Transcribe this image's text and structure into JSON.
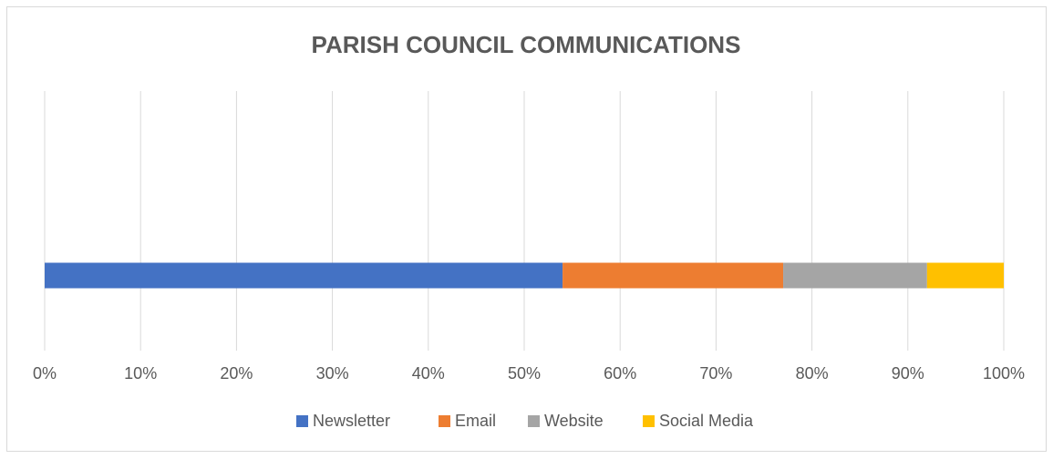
{
  "chart_data": {
    "type": "stacked_barh",
    "title": "PARISH COUNCIL COMMUNICATIONS",
    "categories": [
      null
    ],
    "series": [
      {
        "name": "Newsletter",
        "color": "#4472c4",
        "values": [
          54
        ]
      },
      {
        "name": "Email",
        "color": "#ed7d31",
        "values": [
          23
        ]
      },
      {
        "name": "Website",
        "color": "#a5a5a5",
        "values": [
          15
        ]
      },
      {
        "name": "Social Media",
        "color": "#ffc000",
        "values": [
          8
        ]
      }
    ],
    "xlim": [
      0,
      100
    ],
    "xticks": [
      {
        "value": 0,
        "label": "0%"
      },
      {
        "value": 10,
        "label": "10%"
      },
      {
        "value": 20,
        "label": "20%"
      },
      {
        "value": 30,
        "label": "30%"
      },
      {
        "value": 40,
        "label": "40%"
      },
      {
        "value": 50,
        "label": "50%"
      },
      {
        "value": 60,
        "label": "60%"
      },
      {
        "value": 70,
        "label": "70%"
      },
      {
        "value": 80,
        "label": "80%"
      },
      {
        "value": 90,
        "label": "90%"
      },
      {
        "value": 100,
        "label": "100%"
      }
    ],
    "grid": true,
    "legend": "bottom"
  }
}
